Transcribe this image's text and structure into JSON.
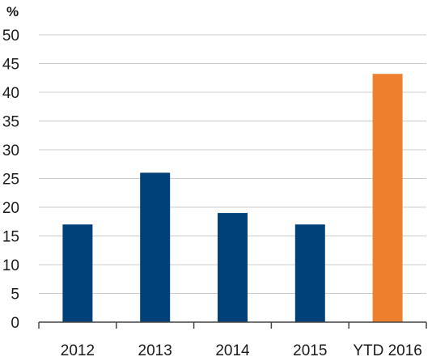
{
  "chart_data": {
    "type": "bar",
    "title": "",
    "xlabel": "",
    "ylabel": "%",
    "ylim": [
      0,
      50
    ],
    "yticks": [
      0,
      5,
      10,
      15,
      20,
      25,
      30,
      35,
      40,
      45,
      50
    ],
    "grid": true,
    "categories": [
      "2012",
      "2013",
      "2014",
      "2015",
      "YTD 2016"
    ],
    "values": [
      17,
      26,
      19,
      17,
      43.2
    ],
    "colors": [
      "#00417a",
      "#00417a",
      "#00417a",
      "#00417a",
      "#ee7f2d"
    ],
    "gridline_color": "#cccccc",
    "axis_color": "#444444"
  }
}
